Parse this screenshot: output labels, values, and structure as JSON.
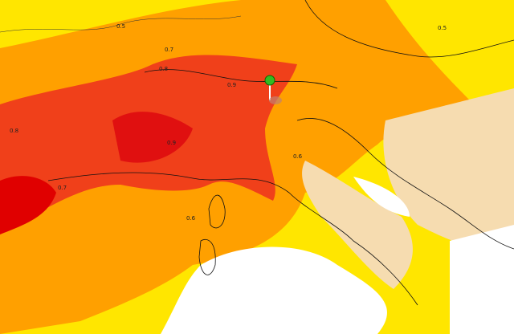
{
  "map": {
    "contour_labels": [
      "0.5",
      "0.7",
      "0.8",
      "0.9",
      "0.9",
      "0.8",
      "0.7",
      "0.6",
      "0.5",
      "0.6"
    ]
  }
}
